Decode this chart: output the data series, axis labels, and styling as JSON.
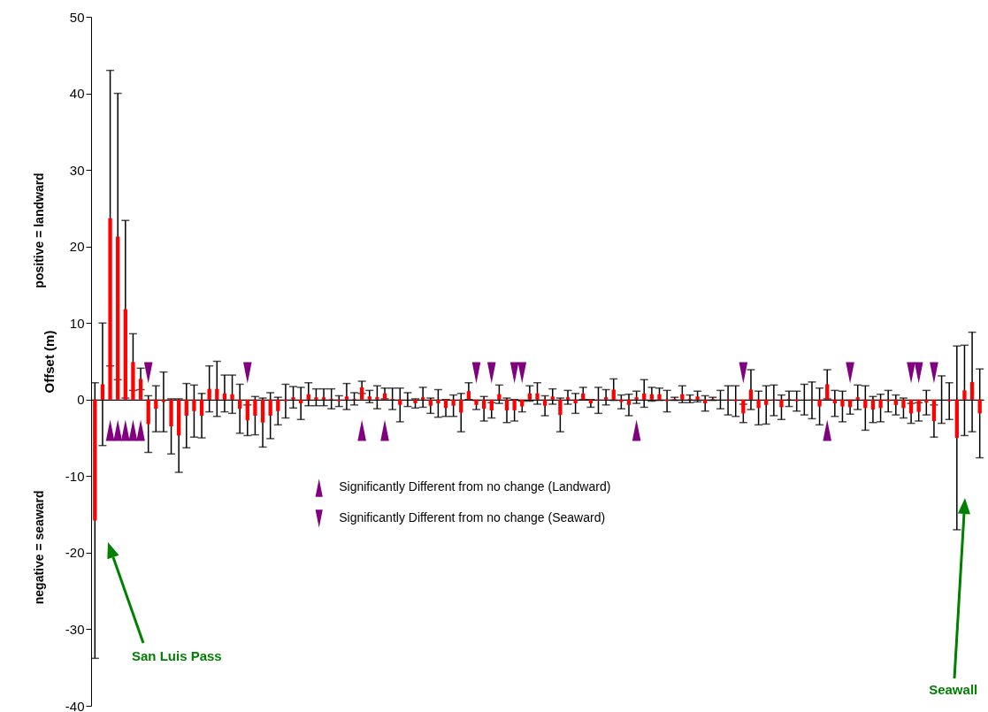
{
  "chart_data": {
    "type": "bar",
    "categories": [
      null,
      null,
      null,
      null,
      null,
      null,
      null,
      null,
      null,
      null,
      null,
      null,
      null,
      null,
      null,
      null,
      null,
      null,
      null,
      null,
      null,
      null,
      null,
      null,
      null,
      null,
      null,
      null,
      null,
      null,
      null,
      null,
      null,
      null,
      null,
      null,
      null,
      null,
      null,
      null,
      null,
      null,
      null,
      null,
      null,
      null,
      null,
      null,
      null,
      null,
      null,
      null,
      null,
      null,
      null,
      null,
      null,
      null,
      null,
      null,
      null,
      null,
      null,
      null,
      null,
      null,
      null,
      null,
      null,
      null,
      null,
      null,
      null,
      null,
      null,
      null,
      null,
      null,
      null,
      null,
      null,
      null,
      null,
      null,
      null,
      null,
      null,
      null,
      null,
      null,
      null,
      null,
      null,
      null,
      null,
      null,
      null,
      null,
      null,
      null,
      null,
      null,
      null,
      null,
      null,
      null,
      null,
      null,
      null,
      null,
      null,
      null,
      null,
      null,
      null,
      null,
      null
    ],
    "ylabel": "Offset (m)",
    "ylim": [
      -40,
      50
    ],
    "yticks": [
      -40,
      -30,
      -20,
      -10,
      0,
      10,
      20,
      30,
      40,
      50
    ],
    "legend": "bottom",
    "marker": "triangle",
    "annotations": [
      "positive = landward",
      "negative = seaward",
      "San Luis Pass",
      "Seawall"
    ],
    "series": [
      {
        "color": "#ff0000",
        "values": [
          -15.8,
          2,
          23.7,
          21.3,
          11.8,
          4.9,
          2.7,
          -3.2,
          -1.2,
          -0.3,
          -3.5,
          -4.7,
          -2.1,
          -1.5,
          -2.1,
          1.4,
          1.4,
          0.8,
          0.7,
          -1.2,
          -2.7,
          -2.1,
          -3,
          -2.1,
          -1.5,
          -0.2,
          0.3,
          -0.5,
          0.7,
          0.3,
          0.3,
          0.1,
          -0.2,
          0.4,
          0.1,
          1.6,
          0.4,
          0.3,
          0.8,
          0.1,
          -0.7,
          0,
          -0.5,
          0.3,
          -0.8,
          -0.5,
          -1.1,
          -0.8,
          -1.7,
          1.1,
          -0.7,
          -1.2,
          -1.4,
          0.7,
          -1.4,
          -1.4,
          -0.9,
          0.8,
          0.8,
          -0.8,
          0.4,
          -2,
          0.3,
          -0.5,
          0.8,
          -0.5,
          -0.1,
          0.3,
          1.3,
          -0.3,
          -0.7,
          0.3,
          0.8,
          0.7,
          0.7,
          -0.2,
          0.1,
          0.7,
          0.1,
          0.4,
          -0.5,
          0.1,
          0,
          -0.1,
          -0.2,
          -1.8,
          1.3,
          -1.1,
          -0.7,
          -0.1,
          -1,
          0.1,
          -0.2,
          0,
          -0.1,
          -0.9,
          2,
          -0.5,
          -0.9,
          -1,
          0.3,
          -1.1,
          -1.3,
          -1.1,
          -0.2,
          -0.7,
          -1.1,
          -1.8,
          -1.6,
          -0.4,
          -2.8,
          0,
          -0.2,
          -5,
          1.2,
          2.3,
          -1.8
        ],
        "errors": [
          18,
          8,
          19.3,
          18.7,
          11.6,
          3.7,
          1.4,
          3.7,
          3,
          3.9,
          3.6,
          4.8,
          4.2,
          3.4,
          2.9,
          3,
          3.6,
          2.4,
          2.5,
          3.2,
          2,
          2.5,
          3.2,
          3,
          1.8,
          2.2,
          1.4,
          2.1,
          1.5,
          1.1,
          1.1,
          1.3,
          0.7,
          1.7,
          0.8,
          0.8,
          0.8,
          1.5,
          0.7,
          1.4,
          2.2,
          0.9,
          0.6,
          1.3,
          1,
          1.8,
          1.1,
          1.4,
          2.5,
          1.1,
          0.6,
          1.6,
          1,
          1.2,
          1.6,
          1.4,
          0.7,
          1,
          1.4,
          1.3,
          1,
          2.2,
          0.9,
          1.3,
          0.8,
          0.5,
          1.7,
          1,
          1.4,
          0.9,
          1.4,
          0.8,
          1.8,
          0.9,
          0.8,
          1.4,
          0.2,
          1.1,
          0.5,
          0.7,
          1,
          0.2,
          1.2,
          1.9,
          2,
          1.2,
          2.6,
          2.2,
          2.5,
          2,
          1.6,
          1,
          1.3,
          2,
          2.4,
          2.4,
          1.9,
          1.7,
          2,
          0.9,
          1.6,
          2.9,
          1.7,
          1.8,
          1.4,
          1.3,
          1.3,
          1.3,
          1.2,
          1.6,
          2.1,
          3.1,
          2.4,
          12,
          5.9,
          6.5,
          5.8
        ]
      },
      {
        "type": "scatter",
        "name": "Significantly Different from no change (Landward)",
        "color": "#800080",
        "values": [
          null,
          null,
          -4,
          -4,
          -4,
          -4,
          -4,
          null,
          null,
          null,
          null,
          null,
          null,
          null,
          null,
          null,
          null,
          null,
          null,
          null,
          null,
          null,
          null,
          null,
          null,
          null,
          null,
          null,
          null,
          null,
          null,
          null,
          null,
          null,
          null,
          -4,
          null,
          null,
          -4,
          null,
          null,
          null,
          null,
          null,
          null,
          null,
          null,
          null,
          null,
          null,
          null,
          null,
          null,
          null,
          null,
          null,
          null,
          null,
          null,
          null,
          null,
          null,
          null,
          null,
          null,
          null,
          null,
          null,
          null,
          null,
          null,
          -4,
          null,
          null,
          null,
          null,
          null,
          null,
          null,
          null,
          null,
          null,
          null,
          null,
          null,
          null,
          null,
          null,
          null,
          null,
          null,
          null,
          null,
          null,
          null,
          null,
          -4,
          null,
          null,
          null,
          null,
          null,
          null,
          null,
          null,
          null,
          null,
          null,
          null,
          null,
          null,
          null,
          null,
          null,
          null,
          null,
          null
        ]
      },
      {
        "type": "scatter",
        "name": "Significantly Different from no change (Seaward)",
        "color": "#800080",
        "values": [
          null,
          null,
          null,
          null,
          null,
          null,
          null,
          3.5,
          null,
          null,
          null,
          null,
          null,
          null,
          null,
          null,
          null,
          null,
          null,
          null,
          3.5,
          null,
          null,
          null,
          null,
          null,
          null,
          null,
          null,
          null,
          null,
          null,
          null,
          null,
          null,
          null,
          null,
          null,
          null,
          null,
          null,
          null,
          null,
          null,
          null,
          null,
          null,
          null,
          null,
          null,
          3.5,
          null,
          3.5,
          null,
          null,
          3.5,
          3.5,
          null,
          null,
          null,
          null,
          null,
          null,
          null,
          null,
          null,
          null,
          null,
          null,
          null,
          null,
          null,
          null,
          null,
          null,
          null,
          null,
          null,
          null,
          null,
          null,
          null,
          null,
          null,
          null,
          3.5,
          null,
          null,
          null,
          null,
          null,
          null,
          null,
          null,
          null,
          null,
          null,
          null,
          null,
          3.5,
          null,
          null,
          null,
          null,
          null,
          null,
          null,
          3.5,
          3.5,
          null,
          3.5,
          null,
          null,
          null,
          null,
          null,
          null
        ]
      }
    ]
  }
}
